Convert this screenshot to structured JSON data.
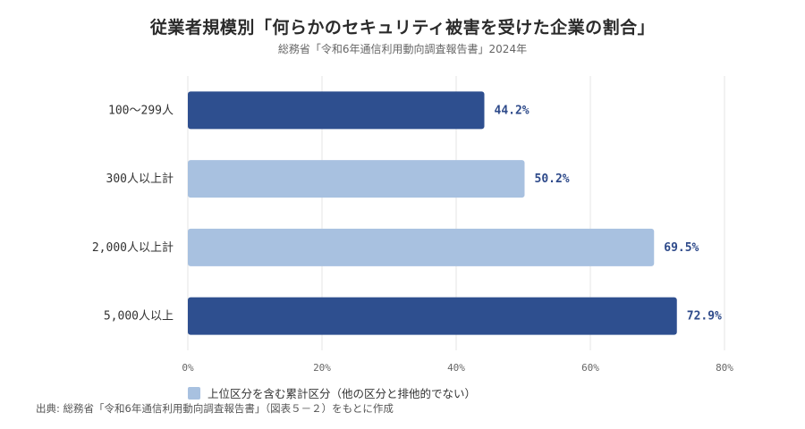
{
  "header": {
    "title": "従業者規模別「何らかのセキュリティ被害を受けた企業の割合」",
    "subtitle": "総務省「令和6年通信利用動向調査報告書」2024年"
  },
  "legend": {
    "label": "上位区分を含む累計区分（他の区分と排他的でない）",
    "color": "#a8c1e0"
  },
  "source": "出典: 総務省「令和6年通信利用動向調査報告書」（図表５－２）をもとに作成",
  "colors": {
    "dark": "#2e4f8f",
    "light": "#a8c1e0",
    "value_text": "#2e4a8a",
    "grid": "#e6e6e6"
  },
  "chart_data": {
    "type": "bar",
    "orientation": "horizontal",
    "categories": [
      "100～299人",
      "300人以上計",
      "2,000人以上計",
      "5,000人以上"
    ],
    "values": [
      44.2,
      50.2,
      69.5,
      72.9
    ],
    "value_labels": [
      "44.2%",
      "50.2%",
      "69.5%",
      "72.9%"
    ],
    "bar_style": [
      "dark",
      "light",
      "light",
      "dark"
    ],
    "xlim": [
      0,
      80
    ],
    "xticks": [
      0,
      20,
      40,
      60,
      80
    ],
    "xtick_labels": [
      "0%",
      "20%",
      "40%",
      "60%",
      "80%"
    ],
    "grid": true,
    "title": "従業者規模別「何らかのセキュリティ被害を受けた企業の割合」",
    "subtitle": "総務省「令和6年通信利用動向調査報告書」2024年"
  }
}
